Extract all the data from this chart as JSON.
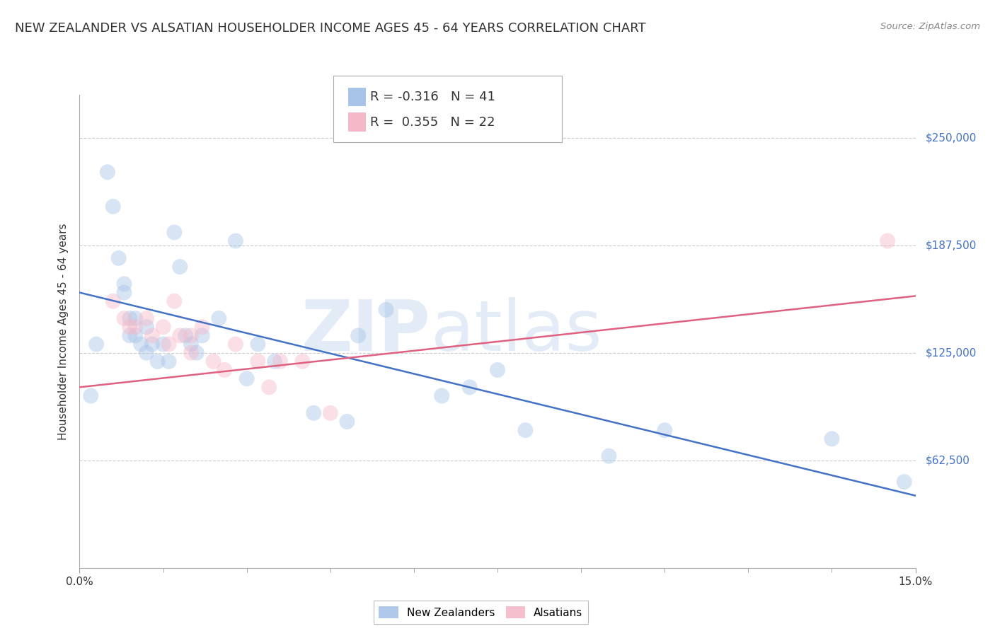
{
  "title": "NEW ZEALANDER VS ALSATIAN HOUSEHOLDER INCOME AGES 45 - 64 YEARS CORRELATION CHART",
  "source": "Source: ZipAtlas.com",
  "ylabel": "Householder Income Ages 45 - 64 years",
  "xlim": [
    0,
    15
  ],
  "ylim": [
    0,
    275000
  ],
  "ytick_labels": [
    "$250,000",
    "$187,500",
    "$125,000",
    "$62,500"
  ],
  "ytick_values": [
    250000,
    187500,
    125000,
    62500
  ],
  "nz_color": "#a8c4e8",
  "alsatian_color": "#f4b8c8",
  "nz_line_color": "#4472c4",
  "alsatian_line_color": "#e06080",
  "nz_R": -0.316,
  "nz_N": 41,
  "alsatian_R": 0.355,
  "alsatian_N": 22,
  "watermark_part1": "ZIP",
  "watermark_part2": "atlas",
  "nz_scatter_x": [
    0.2,
    0.3,
    0.5,
    0.6,
    0.7,
    0.8,
    0.8,
    0.9,
    0.9,
    1.0,
    1.0,
    1.1,
    1.2,
    1.2,
    1.3,
    1.4,
    1.5,
    1.6,
    1.7,
    1.8,
    1.9,
    2.0,
    2.1,
    2.2,
    2.5,
    2.8,
    3.0,
    3.2,
    3.5,
    4.2,
    4.8,
    5.0,
    5.5,
    6.5,
    7.0,
    7.5,
    8.0,
    9.5,
    10.5,
    13.5,
    14.8
  ],
  "nz_scatter_y": [
    100000,
    130000,
    230000,
    210000,
    180000,
    165000,
    160000,
    145000,
    135000,
    145000,
    135000,
    130000,
    140000,
    125000,
    130000,
    120000,
    130000,
    120000,
    195000,
    175000,
    135000,
    130000,
    125000,
    135000,
    145000,
    190000,
    110000,
    130000,
    120000,
    90000,
    85000,
    135000,
    150000,
    100000,
    105000,
    115000,
    80000,
    65000,
    80000,
    75000,
    50000
  ],
  "alsatian_scatter_x": [
    0.6,
    0.8,
    0.9,
    1.0,
    1.2,
    1.3,
    1.5,
    1.6,
    1.7,
    1.8,
    2.0,
    2.0,
    2.2,
    2.4,
    2.6,
    2.8,
    3.2,
    3.4,
    3.6,
    4.0,
    4.5,
    14.5
  ],
  "alsatian_scatter_y": [
    155000,
    145000,
    140000,
    140000,
    145000,
    135000,
    140000,
    130000,
    155000,
    135000,
    135000,
    125000,
    140000,
    120000,
    115000,
    130000,
    120000,
    105000,
    120000,
    120000,
    90000,
    190000
  ],
  "nz_line_x": [
    0,
    15
  ],
  "nz_line_y": [
    160000,
    42000
  ],
  "alsatian_line_x": [
    0,
    15
  ],
  "alsatian_line_y": [
    105000,
    158000
  ],
  "background_color": "#ffffff",
  "grid_color": "#cccccc",
  "title_fontsize": 13,
  "axis_label_fontsize": 11,
  "tick_fontsize": 11,
  "legend_fontsize": 13,
  "scatter_size": 250,
  "scatter_alpha": 0.45,
  "line_width": 1.8
}
